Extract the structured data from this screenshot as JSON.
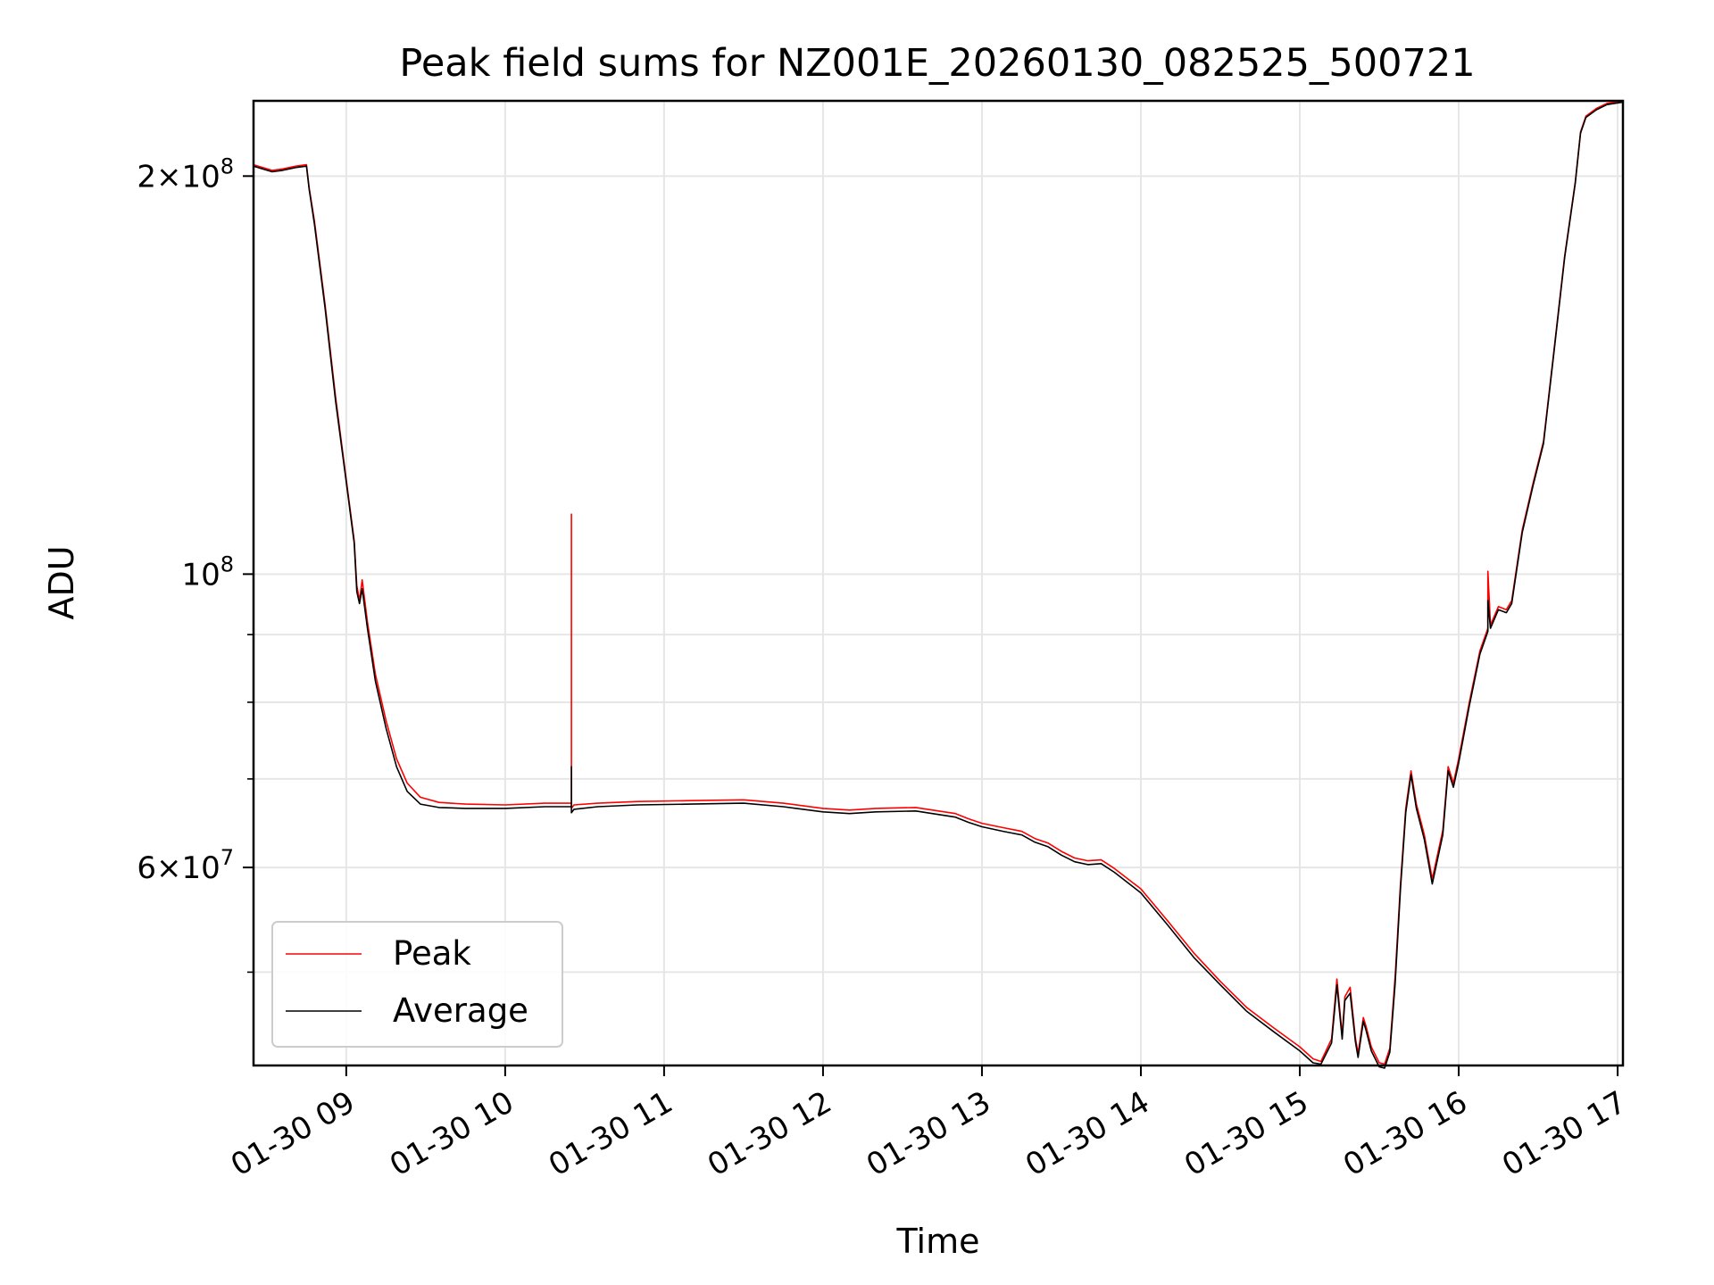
{
  "chart_data": {
    "type": "line",
    "title": "Peak field sums for NZ001E_20260130_082525_500721",
    "xlabel": "Time",
    "ylabel": "ADU",
    "yscale": "log",
    "grid": true,
    "legend_position": "lower-left",
    "xlim": [
      "2026-01-30 08:25",
      "2026-01-30 17:02"
    ],
    "ylim": [
      42500000,
      228000000
    ],
    "x_ticks": [
      {
        "value": "2026-01-30 09:00",
        "label": "01-30 09"
      },
      {
        "value": "2026-01-30 10:00",
        "label": "01-30 10"
      },
      {
        "value": "2026-01-30 11:00",
        "label": "01-30 11"
      },
      {
        "value": "2026-01-30 12:00",
        "label": "01-30 12"
      },
      {
        "value": "2026-01-30 13:00",
        "label": "01-30 13"
      },
      {
        "value": "2026-01-30 14:00",
        "label": "01-30 14"
      },
      {
        "value": "2026-01-30 15:00",
        "label": "01-30 15"
      },
      {
        "value": "2026-01-30 16:00",
        "label": "01-30 16"
      },
      {
        "value": "2026-01-30 17:00",
        "label": "01-30 17"
      }
    ],
    "y_major_ticks": [
      {
        "value": 200000000,
        "mantissa": "2",
        "exponent": "8",
        "times": true
      },
      {
        "value": 100000000,
        "mantissa": "10",
        "exponent": "8",
        "times": false
      },
      {
        "value": 60000000,
        "mantissa": "6",
        "exponent": "7",
        "times": true
      }
    ],
    "y_minor_ticks": [
      50000000,
      70000000,
      80000000,
      90000000
    ],
    "series": [
      {
        "name": "Peak",
        "color": "#ff0000",
        "x": [
          "2026-01-30 08:25",
          "2026-01-30 08:32",
          "2026-01-30 08:36",
          "2026-01-30 08:41",
          "2026-01-30 08:45",
          "2026-01-30 08:46",
          "2026-01-30 08:48",
          "2026-01-30 08:52",
          "2026-01-30 08:56",
          "2026-01-30 09:00",
          "2026-01-30 09:03",
          "2026-01-30 09:04",
          "2026-01-30 09:05",
          "2026-01-30 09:06",
          "2026-01-30 09:08",
          "2026-01-30 09:11",
          "2026-01-30 09:15",
          "2026-01-30 09:19",
          "2026-01-30 09:23",
          "2026-01-30 09:28",
          "2026-01-30 09:35",
          "2026-01-30 09:45",
          "2026-01-30 10:00",
          "2026-01-30 10:15",
          "2026-01-30 10:25",
          "2026-01-30 10:25",
          "2026-01-30 10:25",
          "2026-01-30 10:26",
          "2026-01-30 10:35",
          "2026-01-30 10:50",
          "2026-01-30 11:10",
          "2026-01-30 11:30",
          "2026-01-30 11:45",
          "2026-01-30 12:00",
          "2026-01-30 12:10",
          "2026-01-30 12:20",
          "2026-01-30 12:35",
          "2026-01-30 12:50",
          "2026-01-30 12:55",
          "2026-01-30 13:00",
          "2026-01-30 13:08",
          "2026-01-30 13:15",
          "2026-01-30 13:20",
          "2026-01-30 13:25",
          "2026-01-30 13:30",
          "2026-01-30 13:35",
          "2026-01-30 13:40",
          "2026-01-30 13:45",
          "2026-01-30 13:50",
          "2026-01-30 14:00",
          "2026-01-30 14:10",
          "2026-01-30 14:20",
          "2026-01-30 14:30",
          "2026-01-30 14:40",
          "2026-01-30 14:50",
          "2026-01-30 15:00",
          "2026-01-30 15:05",
          "2026-01-30 15:08",
          "2026-01-30 15:12",
          "2026-01-30 15:14",
          "2026-01-30 15:16",
          "2026-01-30 15:17",
          "2026-01-30 15:19",
          "2026-01-30 15:21",
          "2026-01-30 15:22",
          "2026-01-30 15:24",
          "2026-01-30 15:25",
          "2026-01-30 15:27",
          "2026-01-30 15:30",
          "2026-01-30 15:32",
          "2026-01-30 15:34",
          "2026-01-30 15:36",
          "2026-01-30 15:38",
          "2026-01-30 15:40",
          "2026-01-30 15:42",
          "2026-01-30 15:44",
          "2026-01-30 15:47",
          "2026-01-30 15:50",
          "2026-01-30 15:54",
          "2026-01-30 15:56",
          "2026-01-30 15:58",
          "2026-01-30 16:00",
          "2026-01-30 16:04",
          "2026-01-30 16:08",
          "2026-01-30 16:11",
          "2026-01-30 16:11",
          "2026-01-30 16:12",
          "2026-01-30 16:15",
          "2026-01-30 16:18",
          "2026-01-30 16:20",
          "2026-01-30 16:24",
          "2026-01-30 16:28",
          "2026-01-30 16:32",
          "2026-01-30 16:36",
          "2026-01-30 16:40",
          "2026-01-30 16:44",
          "2026-01-30 16:46",
          "2026-01-30 16:48",
          "2026-01-30 16:52",
          "2026-01-30 16:56",
          "2026-01-30 17:02"
        ],
        "values": [
          204000000,
          202000000,
          202500000,
          203500000,
          204000000,
          196000000,
          185000000,
          160000000,
          136000000,
          118000000,
          106000000,
          98000000,
          95500000,
          99000000,
          92000000,
          84000000,
          77500000,
          72500000,
          69500000,
          67800000,
          67200000,
          67000000,
          66900000,
          67100000,
          67100000,
          111000000,
          66500000,
          66900000,
          67100000,
          67300000,
          67400000,
          67500000,
          67100000,
          66500000,
          66300000,
          66500000,
          66600000,
          65900000,
          65300000,
          64800000,
          64300000,
          63900000,
          63100000,
          62600000,
          61700000,
          61000000,
          60700000,
          60800000,
          59900000,
          57800000,
          54700000,
          51700000,
          49200000,
          47000000,
          45400000,
          43900000,
          43000000,
          42800000,
          44500000,
          49400000,
          44800000,
          47900000,
          48700000,
          44600000,
          43400000,
          46200000,
          45500000,
          43900000,
          42700000,
          42600000,
          43800000,
          49600000,
          58300000,
          66500000,
          71000000,
          67000000,
          63500000,
          58800000,
          64000000,
          71500000,
          69500000,
          72500000,
          80000000,
          87500000,
          91000000,
          100500000,
          91500000,
          94500000,
          94000000,
          95500000,
          108000000,
          117000000,
          126000000,
          148000000,
          174000000,
          198000000,
          216000000,
          222000000,
          225000000,
          227000000,
          228000000
        ]
      },
      {
        "name": "Average",
        "color": "#000000",
        "x": [
          "2026-01-30 08:25",
          "2026-01-30 08:32",
          "2026-01-30 08:36",
          "2026-01-30 08:41",
          "2026-01-30 08:45",
          "2026-01-30 08:46",
          "2026-01-30 08:48",
          "2026-01-30 08:52",
          "2026-01-30 08:56",
          "2026-01-30 09:00",
          "2026-01-30 09:03",
          "2026-01-30 09:04",
          "2026-01-30 09:05",
          "2026-01-30 09:06",
          "2026-01-30 09:08",
          "2026-01-30 09:11",
          "2026-01-30 09:15",
          "2026-01-30 09:19",
          "2026-01-30 09:23",
          "2026-01-30 09:28",
          "2026-01-30 09:35",
          "2026-01-30 09:45",
          "2026-01-30 10:00",
          "2026-01-30 10:15",
          "2026-01-30 10:25",
          "2026-01-30 10:25",
          "2026-01-30 10:25",
          "2026-01-30 10:26",
          "2026-01-30 10:35",
          "2026-01-30 10:50",
          "2026-01-30 11:10",
          "2026-01-30 11:30",
          "2026-01-30 11:45",
          "2026-01-30 12:00",
          "2026-01-30 12:10",
          "2026-01-30 12:20",
          "2026-01-30 12:35",
          "2026-01-30 12:50",
          "2026-01-30 12:55",
          "2026-01-30 13:00",
          "2026-01-30 13:08",
          "2026-01-30 13:15",
          "2026-01-30 13:20",
          "2026-01-30 13:25",
          "2026-01-30 13:30",
          "2026-01-30 13:35",
          "2026-01-30 13:40",
          "2026-01-30 13:45",
          "2026-01-30 13:50",
          "2026-01-30 14:00",
          "2026-01-30 14:10",
          "2026-01-30 14:20",
          "2026-01-30 14:30",
          "2026-01-30 14:40",
          "2026-01-30 14:50",
          "2026-01-30 15:00",
          "2026-01-30 15:05",
          "2026-01-30 15:08",
          "2026-01-30 15:12",
          "2026-01-30 15:14",
          "2026-01-30 15:16",
          "2026-01-30 15:17",
          "2026-01-30 15:19",
          "2026-01-30 15:21",
          "2026-01-30 15:22",
          "2026-01-30 15:24",
          "2026-01-30 15:25",
          "2026-01-30 15:27",
          "2026-01-30 15:30",
          "2026-01-30 15:32",
          "2026-01-30 15:34",
          "2026-01-30 15:36",
          "2026-01-30 15:38",
          "2026-01-30 15:40",
          "2026-01-30 15:42",
          "2026-01-30 15:44",
          "2026-01-30 15:47",
          "2026-01-30 15:50",
          "2026-01-30 15:54",
          "2026-01-30 15:56",
          "2026-01-30 15:58",
          "2026-01-30 16:00",
          "2026-01-30 16:04",
          "2026-01-30 16:08",
          "2026-01-30 16:11",
          "2026-01-30 16:11",
          "2026-01-30 16:12",
          "2026-01-30 16:15",
          "2026-01-30 16:18",
          "2026-01-30 16:20",
          "2026-01-30 16:24",
          "2026-01-30 16:28",
          "2026-01-30 16:32",
          "2026-01-30 16:36",
          "2026-01-30 16:40",
          "2026-01-30 16:44",
          "2026-01-30 16:46",
          "2026-01-30 16:48",
          "2026-01-30 16:52",
          "2026-01-30 16:56",
          "2026-01-30 17:02"
        ],
        "values": [
          203500000,
          201500000,
          202000000,
          203000000,
          203500000,
          195500000,
          184000000,
          159000000,
          135000000,
          117500000,
          105500000,
          97000000,
          95000000,
          97500000,
          91000000,
          83000000,
          76500000,
          71500000,
          68500000,
          67000000,
          66600000,
          66500000,
          66500000,
          66700000,
          66700000,
          71500000,
          66000000,
          66400000,
          66700000,
          66900000,
          67000000,
          67100000,
          66700000,
          66100000,
          65900000,
          66100000,
          66200000,
          65500000,
          64900000,
          64400000,
          63900000,
          63500000,
          62700000,
          62200000,
          61300000,
          60600000,
          60300000,
          60400000,
          59500000,
          57400000,
          54300000,
          51300000,
          48900000,
          46700000,
          45100000,
          43600000,
          42700000,
          42600000,
          44200000,
          48900000,
          44500000,
          47600000,
          48200000,
          44300000,
          43100000,
          45900000,
          45200000,
          43600000,
          42400000,
          42300000,
          43500000,
          49000000,
          57800000,
          66000000,
          70500000,
          66500000,
          63000000,
          58300000,
          63500000,
          71000000,
          69000000,
          72000000,
          79500000,
          87000000,
          90500000,
          95500000,
          91000000,
          94000000,
          93500000,
          95000000,
          107500000,
          116500000,
          125500000,
          147500000,
          173500000,
          197500000,
          215500000,
          221500000,
          224500000,
          226500000,
          227500000
        ]
      }
    ]
  }
}
